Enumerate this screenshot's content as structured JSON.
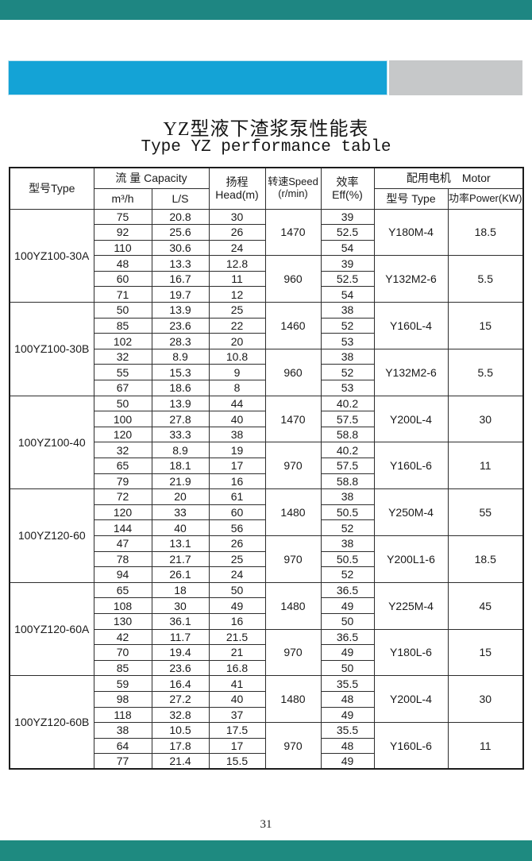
{
  "page": {
    "title_zh": "YZ型液下渣浆泵性能表",
    "title_en": "Type YZ performance table",
    "page_number": "31"
  },
  "colors": {
    "top_bar_teal": "#1e8682",
    "bottom_bar_teal": "#1e8a80",
    "accent_cyan": "#14a3d6",
    "accent_gray": "#c6c8c9"
  },
  "table": {
    "headers": {
      "model": "型号Type",
      "capacity": "流  量 Capacity",
      "capacity_m3h": "m³/h",
      "capacity_ls": "L/S",
      "head": "扬程\nHead(m)",
      "speed": "转速Speed\n(r/min)",
      "eff": "效率\nEff(%)",
      "motor": "配用电机　Motor",
      "motor_type": "型号 Type",
      "motor_power": "功率Power(KW)"
    },
    "sections": [
      {
        "model": "100YZ100-30A",
        "groups": [
          {
            "speed": "1470",
            "motor": "Y180M-4",
            "power": "18.5",
            "rows": [
              [
                "75",
                "20.8",
                "30",
                "39"
              ],
              [
                "92",
                "25.6",
                "26",
                "52.5"
              ],
              [
                "110",
                "30.6",
                "24",
                "54"
              ]
            ]
          },
          {
            "speed": "960",
            "motor": "Y132M2-6",
            "power": "5.5",
            "rows": [
              [
                "48",
                "13.3",
                "12.8",
                "39"
              ],
              [
                "60",
                "16.7",
                "11",
                "52.5"
              ],
              [
                "71",
                "19.7",
                "12",
                "54"
              ]
            ]
          }
        ]
      },
      {
        "model": "100YZ100-30B",
        "groups": [
          {
            "speed": "1460",
            "motor": "Y160L-4",
            "power": "15",
            "rows": [
              [
                "50",
                "13.9",
                "25",
                "38"
              ],
              [
                "85",
                "23.6",
                "22",
                "52"
              ],
              [
                "102",
                "28.3",
                "20",
                "53"
              ]
            ]
          },
          {
            "speed": "960",
            "motor": "Y132M2-6",
            "power": "5.5",
            "rows": [
              [
                "32",
                "8.9",
                "10.8",
                "38"
              ],
              [
                "55",
                "15.3",
                "9",
                "52"
              ],
              [
                "67",
                "18.6",
                "8",
                "53"
              ]
            ]
          }
        ]
      },
      {
        "model": "100YZ100-40",
        "groups": [
          {
            "speed": "1470",
            "motor": "Y200L-4",
            "power": "30",
            "rows": [
              [
                "50",
                "13.9",
                "44",
                "40.2"
              ],
              [
                "100",
                "27.8",
                "40",
                "57.5"
              ],
              [
                "120",
                "33.3",
                "38",
                "58.8"
              ]
            ]
          },
          {
            "speed": "970",
            "motor": "Y160L-6",
            "power": "11",
            "rows": [
              [
                "32",
                "8.9",
                "19",
                "40.2"
              ],
              [
                "65",
                "18.1",
                "17",
                "57.5"
              ],
              [
                "79",
                "21.9",
                "16",
                "58.8"
              ]
            ]
          }
        ]
      },
      {
        "model": "100YZ120-60",
        "groups": [
          {
            "speed": "1480",
            "motor": "Y250M-4",
            "power": "55",
            "rows": [
              [
                "72",
                "20",
                "61",
                "38"
              ],
              [
                "120",
                "33",
                "60",
                "50.5"
              ],
              [
                "144",
                "40",
                "56",
                "52"
              ]
            ]
          },
          {
            "speed": "970",
            "motor": "Y200L1-6",
            "power": "18.5",
            "rows": [
              [
                "47",
                "13.1",
                "26",
                "38"
              ],
              [
                "78",
                "21.7",
                "25",
                "50.5"
              ],
              [
                "94",
                "26.1",
                "24",
                "52"
              ]
            ]
          }
        ]
      },
      {
        "model": "100YZ120-60A",
        "groups": [
          {
            "speed": "1480",
            "motor": "Y225M-4",
            "power": "45",
            "rows": [
              [
                "65",
                "18",
                "50",
                "36.5"
              ],
              [
                "108",
                "30",
                "49",
                "49"
              ],
              [
                "130",
                "36.1",
                "16",
                "50"
              ]
            ]
          },
          {
            "speed": "970",
            "motor": "Y180L-6",
            "power": "15",
            "rows": [
              [
                "42",
                "11.7",
                "21.5",
                "36.5"
              ],
              [
                "70",
                "19.4",
                "21",
                "49"
              ],
              [
                "85",
                "23.6",
                "16.8",
                "50"
              ]
            ]
          }
        ]
      },
      {
        "model": "100YZ120-60B",
        "groups": [
          {
            "speed": "1480",
            "motor": "Y200L-4",
            "power": "30",
            "rows": [
              [
                "59",
                "16.4",
                "41",
                "35.5"
              ],
              [
                "98",
                "27.2",
                "40",
                "48"
              ],
              [
                "118",
                "32.8",
                "37",
                "49"
              ]
            ]
          },
          {
            "speed": "970",
            "motor": "Y160L-6",
            "power": "11",
            "rows": [
              [
                "38",
                "10.5",
                "17.5",
                "35.5"
              ],
              [
                "64",
                "17.8",
                "17",
                "48"
              ],
              [
                "77",
                "21.4",
                "15.5",
                "49"
              ]
            ]
          }
        ]
      }
    ]
  }
}
